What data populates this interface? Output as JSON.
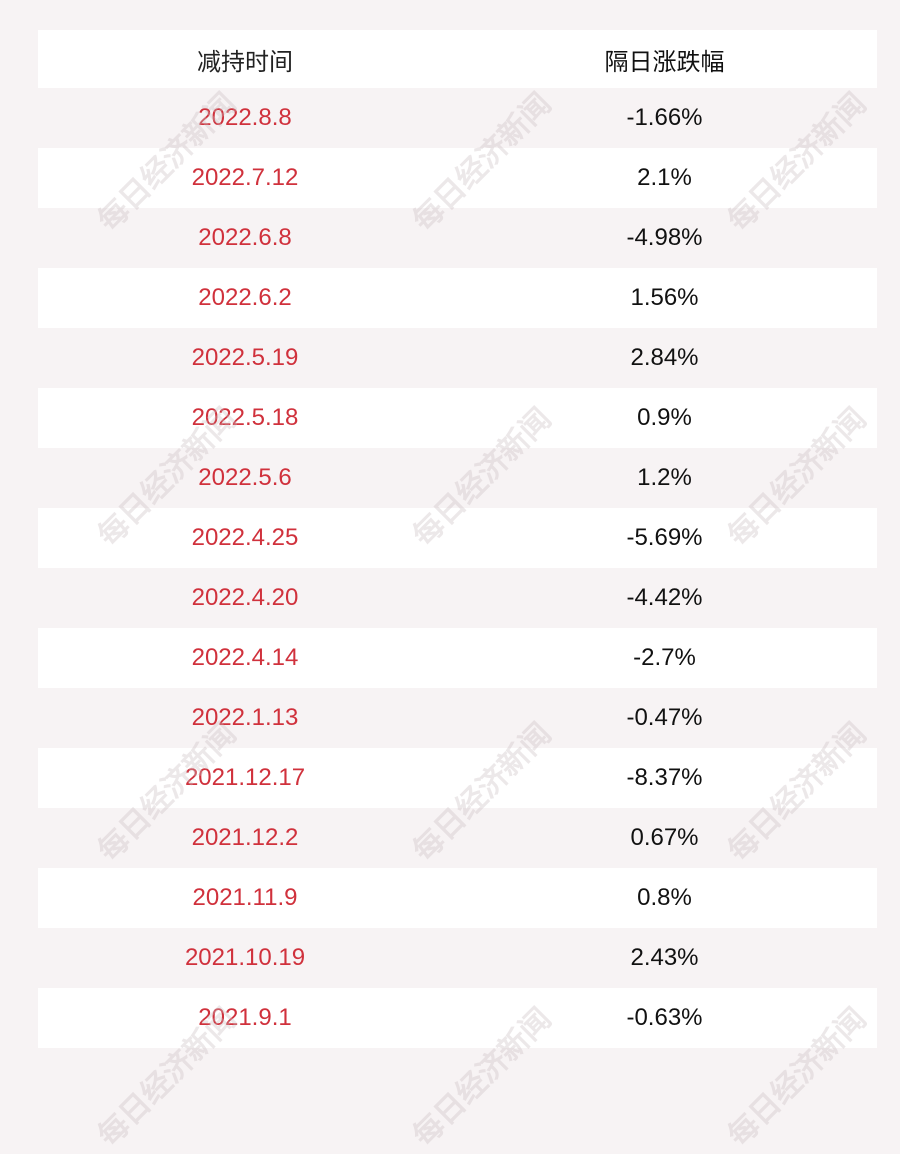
{
  "table": {
    "header": [
      "减持时间",
      "隔日涨跌幅"
    ],
    "rows": [
      [
        "2022.8.8",
        "-1.66%"
      ],
      [
        "2022.7.12",
        "2.1%"
      ],
      [
        "2022.6.8",
        "-4.98%"
      ],
      [
        "2022.6.2",
        "1.56%"
      ],
      [
        "2022.5.19",
        "2.84%"
      ],
      [
        "2022.5.18",
        "0.9%"
      ],
      [
        "2022.5.6",
        "1.2%"
      ],
      [
        "2022.4.25",
        "-5.69%"
      ],
      [
        "2022.4.20",
        "-4.42%"
      ],
      [
        "2022.4.14",
        "-2.7%"
      ],
      [
        "2022.1.13",
        "-0.47%"
      ],
      [
        "2021.12.17",
        "-8.37%"
      ],
      [
        "2021.12.2",
        "0.67%"
      ],
      [
        "2021.11.9",
        "0.8%"
      ],
      [
        "2021.10.19",
        "2.43%"
      ],
      [
        "2021.9.1",
        "-0.63%"
      ]
    ]
  },
  "watermark": "每日经济新闻"
}
